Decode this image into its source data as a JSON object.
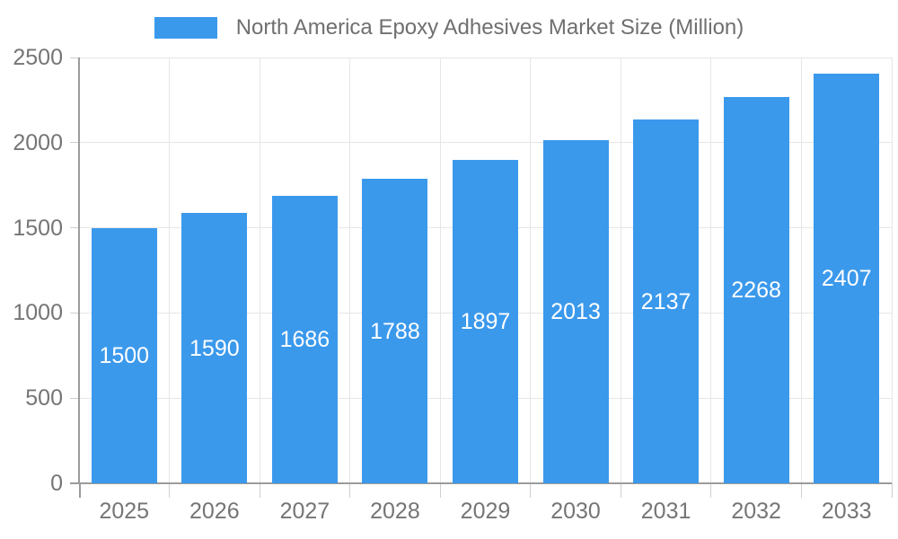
{
  "chart_data": {
    "type": "bar",
    "title": "North America Epoxy Adhesives Market Size (Million)",
    "legend": {
      "position": "top",
      "entries": [
        "North America Epoxy Adhesives Market Size (Million)"
      ]
    },
    "categories": [
      "2025",
      "2026",
      "2027",
      "2028",
      "2029",
      "2030",
      "2031",
      "2032",
      "2033"
    ],
    "values": [
      1500,
      1590,
      1686,
      1788,
      1897,
      2013,
      2137,
      2268,
      2407
    ],
    "xlabel": "",
    "ylabel": "",
    "ylim": [
      0,
      2500
    ],
    "yticks": [
      0,
      500,
      1000,
      1500,
      2000,
      2500
    ],
    "grid": true,
    "value_label_position": "inside-center",
    "colors": {
      "bar": "#3B99EC",
      "grid": "#E6E6E6",
      "axis": "#9B9B9B",
      "tick": "#CFCFCF",
      "tick_text": "#757575",
      "title_text": "#6F6F6F",
      "value_label_text": "#FFFFFF"
    }
  }
}
